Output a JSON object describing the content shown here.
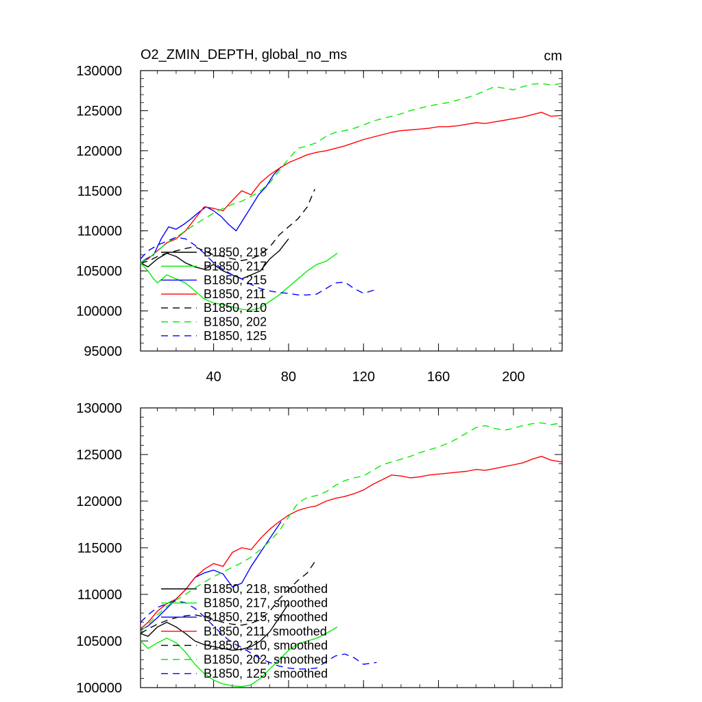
{
  "figure_title": "O2_ZMIN_DEPTH, global_no_ms",
  "units": "cm",
  "chart_data": [
    {
      "type": "line",
      "title": "O2_ZMIN_DEPTH, global_no_ms",
      "units_label": "cm",
      "xlabel": "",
      "ylabel": "",
      "xlim": [
        1,
        226
      ],
      "ylim": [
        95000,
        130000
      ],
      "xticks": [
        40,
        80,
        120,
        160,
        200
      ],
      "xtick_labels": [
        "40",
        "80",
        "120",
        "160",
        "200"
      ],
      "yticks": [
        95000,
        100000,
        105000,
        110000,
        115000,
        120000,
        125000,
        130000
      ],
      "ytick_labels": [
        "95000",
        "100000",
        "105000",
        "110000",
        "115000",
        "120000",
        "125000",
        "130000"
      ],
      "legend": [
        "B1850, 218",
        "B1850, 217",
        "B1850, 215",
        "B1850, 211",
        "B1850, 210",
        "B1850, 202",
        "B1850, 125"
      ],
      "series": [
        {
          "name": "B1850, 218",
          "color": "#000000",
          "dash": "solid",
          "x": [
            1,
            5,
            10,
            15,
            20,
            25,
            30,
            35,
            40,
            45,
            50,
            55,
            60,
            65,
            70,
            75,
            80
          ],
          "y": [
            106000,
            105500,
            106500,
            107200,
            106800,
            106000,
            105500,
            105200,
            105800,
            105000,
            104500,
            104000,
            104500,
            105000,
            106500,
            107500,
            109000
          ]
        },
        {
          "name": "B1850, 217",
          "color": "#00ee00",
          "dash": "solid",
          "x": [
            1,
            5,
            8,
            10,
            15,
            20,
            25,
            30,
            35,
            40,
            45,
            50,
            55,
            60,
            65,
            70,
            75,
            80,
            85,
            90,
            95,
            100,
            106
          ],
          "y": [
            106000,
            105000,
            104000,
            103500,
            104500,
            104000,
            103500,
            102500,
            101500,
            101000,
            100800,
            100500,
            100200,
            100100,
            100400,
            101200,
            102000,
            103000,
            104000,
            105000,
            105800,
            106200,
            107200
          ]
        },
        {
          "name": "B1850, 215",
          "color": "#0000ff",
          "dash": "solid",
          "x": [
            1,
            4,
            8,
            12,
            16,
            20,
            24,
            28,
            32,
            36,
            40,
            44,
            48,
            52,
            56,
            60,
            64,
            68,
            72,
            76
          ],
          "y": [
            106000,
            106500,
            107000,
            109000,
            110500,
            110200,
            110800,
            111500,
            112300,
            113000,
            112500,
            111800,
            110800,
            110000,
            111500,
            113000,
            114500,
            115500,
            117000,
            118000
          ]
        },
        {
          "name": "B1850, 211",
          "color": "#ff0000",
          "dash": "solid",
          "x": [
            1,
            5,
            10,
            15,
            20,
            25,
            30,
            35,
            40,
            45,
            50,
            55,
            60,
            65,
            70,
            75,
            80,
            85,
            90,
            95,
            100,
            105,
            110,
            115,
            120,
            125,
            130,
            135,
            140,
            145,
            150,
            155,
            160,
            165,
            170,
            175,
            180,
            185,
            190,
            195,
            200,
            205,
            210,
            215,
            220,
            226
          ],
          "y": [
            106000,
            106500,
            107500,
            108500,
            109000,
            110000,
            111500,
            113000,
            112800,
            112500,
            113800,
            115000,
            114500,
            116000,
            117000,
            117800,
            118500,
            119000,
            119500,
            119800,
            120000,
            120300,
            120600,
            121000,
            121400,
            121700,
            122000,
            122300,
            122500,
            122600,
            122700,
            122800,
            123000,
            123000,
            123100,
            123300,
            123500,
            123400,
            123600,
            123800,
            124000,
            124200,
            124500,
            124800,
            124300,
            124400
          ]
        },
        {
          "name": "B1850, 210",
          "color": "#000000",
          "dash": "dashed",
          "x": [
            1,
            5,
            10,
            15,
            20,
            25,
            30,
            35,
            40,
            45,
            50,
            55,
            60,
            65,
            70,
            75,
            80,
            85,
            90,
            94
          ],
          "y": [
            106000,
            106200,
            106800,
            107200,
            107500,
            107800,
            108000,
            107500,
            107000,
            106800,
            106500,
            106300,
            106500,
            107000,
            108000,
            109500,
            110500,
            111500,
            113000,
            115200
          ]
        },
        {
          "name": "B1850, 202",
          "color": "#00ee00",
          "dash": "dashed",
          "x": [
            1,
            5,
            10,
            15,
            20,
            25,
            30,
            35,
            40,
            45,
            50,
            55,
            60,
            65,
            70,
            75,
            80,
            85,
            90,
            95,
            100,
            105,
            110,
            115,
            120,
            125,
            130,
            135,
            140,
            145,
            150,
            155,
            160,
            165,
            170,
            175,
            180,
            185,
            190,
            195,
            200,
            205,
            210,
            215,
            220,
            226
          ],
          "y": [
            106000,
            106500,
            107500,
            108500,
            109200,
            110000,
            110800,
            111500,
            112200,
            112800,
            113300,
            113700,
            114300,
            115000,
            116000,
            117500,
            119000,
            120300,
            120600,
            121000,
            121800,
            122300,
            122500,
            122800,
            123200,
            123700,
            124000,
            124300,
            124600,
            125000,
            125300,
            125600,
            125800,
            126000,
            126300,
            126600,
            127000,
            127500,
            128000,
            127800,
            127600,
            128000,
            128300,
            128400,
            128200,
            128400
          ]
        },
        {
          "name": "B1850, 125",
          "color": "#0000ff",
          "dash": "dashed",
          "x": [
            1,
            5,
            10,
            15,
            20,
            25,
            30,
            35,
            40,
            45,
            50,
            55,
            60,
            65,
            70,
            75,
            80,
            85,
            90,
            95,
            100,
            105,
            110,
            115,
            120,
            127
          ],
          "y": [
            106500,
            107500,
            108200,
            108700,
            109200,
            109000,
            108200,
            107200,
            106000,
            105200,
            104500,
            104000,
            103300,
            102800,
            102500,
            102300,
            102200,
            102000,
            102000,
            102100,
            102800,
            103500,
            103600,
            102800,
            102200,
            102700
          ]
        }
      ]
    },
    {
      "type": "line",
      "title": "",
      "xlabel": "",
      "ylabel": "",
      "xlim": [
        1,
        226
      ],
      "ylim": [
        100000,
        130000
      ],
      "xticks": [
        40,
        80,
        120,
        160,
        200
      ],
      "xtick_labels": [],
      "yticks": [
        100000,
        105000,
        110000,
        115000,
        120000,
        125000,
        130000
      ],
      "ytick_labels": [
        "100000",
        "105000",
        "110000",
        "115000",
        "120000",
        "125000",
        "130000"
      ],
      "legend": [
        "B1850, 218, smoothed",
        "B1850, 217, smoothed",
        "B1850, 215, smoothed",
        "B1850, 211, smoothed",
        "B1850, 210, smoothed",
        "B1850, 202, smoothed",
        "B1850, 125, smoothed"
      ],
      "series": [
        {
          "name": "B1850, 218, smoothed",
          "color": "#000000",
          "dash": "solid",
          "x": [
            1,
            5,
            10,
            15,
            20,
            25,
            30,
            35,
            40,
            45,
            50,
            55,
            60,
            65,
            70,
            75,
            80
          ],
          "y": [
            105800,
            105500,
            106500,
            107000,
            106500,
            105800,
            105000,
            104600,
            104400,
            104200,
            104000,
            104100,
            104400,
            105000,
            106000,
            107500,
            109000
          ]
        },
        {
          "name": "B1850, 217, smoothed",
          "color": "#00ee00",
          "dash": "solid",
          "x": [
            1,
            5,
            10,
            15,
            20,
            25,
            30,
            35,
            40,
            45,
            50,
            55,
            60,
            65,
            70,
            75,
            80,
            85,
            90,
            95,
            100,
            106
          ],
          "y": [
            105000,
            104200,
            104800,
            105300,
            104800,
            103800,
            102500,
            101500,
            100800,
            100400,
            100200,
            100100,
            100300,
            101000,
            102000,
            103000,
            104000,
            104700,
            105000,
            105300,
            105800,
            106500
          ]
        },
        {
          "name": "B1850, 215, smoothed",
          "color": "#0000ff",
          "dash": "solid",
          "x": [
            1,
            5,
            10,
            15,
            20,
            25,
            30,
            35,
            40,
            45,
            50,
            55,
            60,
            65,
            70,
            76
          ],
          "y": [
            106200,
            106600,
            107500,
            108500,
            109500,
            110500,
            111800,
            112300,
            112600,
            112200,
            110800,
            111200,
            113000,
            114500,
            116000,
            117800
          ]
        },
        {
          "name": "B1850, 211, smoothed",
          "color": "#ff0000",
          "dash": "solid",
          "x": [
            1,
            5,
            10,
            15,
            20,
            25,
            30,
            35,
            40,
            45,
            50,
            55,
            60,
            65,
            70,
            75,
            80,
            85,
            90,
            95,
            100,
            105,
            110,
            115,
            120,
            125,
            130,
            135,
            140,
            145,
            150,
            155,
            160,
            165,
            170,
            175,
            180,
            185,
            190,
            195,
            200,
            205,
            210,
            215,
            220,
            226
          ],
          "y": [
            106300,
            107000,
            108200,
            109000,
            109500,
            110500,
            111800,
            112700,
            113300,
            113000,
            114500,
            115000,
            114800,
            116000,
            117000,
            117800,
            118500,
            119000,
            119300,
            119500,
            120000,
            120300,
            120500,
            120800,
            121200,
            121800,
            122300,
            122800,
            122700,
            122500,
            122600,
            122800,
            122900,
            123000,
            123100,
            123200,
            123400,
            123300,
            123500,
            123700,
            123900,
            124100,
            124500,
            124800,
            124400,
            124200
          ]
        },
        {
          "name": "B1850, 210, smoothed",
          "color": "#000000",
          "dash": "dashed",
          "x": [
            1,
            5,
            10,
            15,
            20,
            25,
            30,
            35,
            40,
            45,
            50,
            55,
            60,
            65,
            70,
            75,
            80,
            85,
            90,
            94
          ],
          "y": [
            105800,
            106300,
            106800,
            107200,
            107500,
            107700,
            107800,
            107600,
            107300,
            107000,
            106800,
            106700,
            106900,
            107300,
            108200,
            109500,
            110500,
            111500,
            112300,
            113500
          ]
        },
        {
          "name": "B1850, 202, smoothed",
          "color": "#00ee00",
          "dash": "dashed",
          "x": [
            1,
            5,
            10,
            15,
            20,
            25,
            30,
            35,
            40,
            45,
            50,
            55,
            60,
            65,
            70,
            75,
            80,
            85,
            90,
            95,
            100,
            105,
            110,
            115,
            120,
            125,
            130,
            135,
            140,
            145,
            150,
            155,
            160,
            165,
            170,
            175,
            180,
            185,
            190,
            195,
            200,
            205,
            210,
            215,
            220,
            226
          ],
          "y": [
            106000,
            106800,
            107800,
            108700,
            109400,
            110000,
            110700,
            111300,
            111900,
            112400,
            112900,
            113400,
            114000,
            114800,
            115700,
            116800,
            118300,
            119800,
            120400,
            120600,
            121000,
            121700,
            122200,
            122500,
            122700,
            123300,
            123900,
            124200,
            124500,
            124800,
            125200,
            125500,
            125800,
            126200,
            126700,
            127300,
            127900,
            128100,
            127800,
            127600,
            127800,
            128100,
            128300,
            128400,
            128200,
            128400
          ]
        },
        {
          "name": "B1850, 125, smoothed",
          "color": "#0000ff",
          "dash": "dashed",
          "x": [
            1,
            5,
            10,
            15,
            20,
            25,
            30,
            35,
            40,
            45,
            50,
            55,
            60,
            65,
            70,
            75,
            80,
            85,
            90,
            95,
            100,
            105,
            110,
            115,
            120,
            127
          ],
          "y": [
            107000,
            107800,
            108600,
            109000,
            109300,
            109100,
            108500,
            107600,
            106600,
            105600,
            104800,
            104300,
            103700,
            103100,
            102700,
            102300,
            102100,
            102000,
            102000,
            102100,
            102800,
            103400,
            103600,
            103200,
            102500,
            102700
          ]
        }
      ]
    }
  ]
}
